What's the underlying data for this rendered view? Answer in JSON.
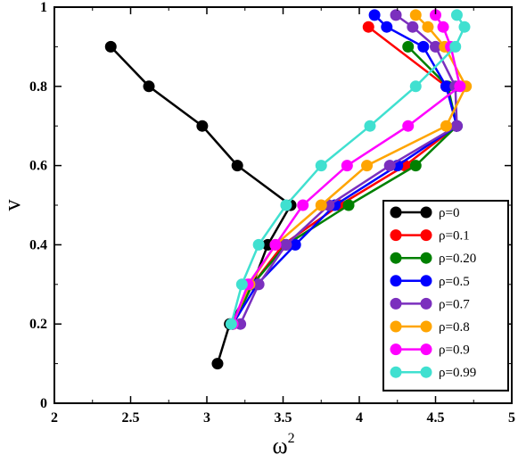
{
  "chart_data": {
    "type": "line",
    "xlabel": "ω",
    "xlabel_superscript": "2",
    "ylabel": "v",
    "xlim": [
      2,
      5
    ],
    "ylim": [
      0,
      1
    ],
    "xticks": [
      "2",
      "2.5",
      "3",
      "3.5",
      "4",
      "4.5",
      "5"
    ],
    "yticks": [
      "0",
      "0.2",
      "0.4",
      "0.6",
      "0.8",
      "1"
    ],
    "legend": {
      "position": "bottom-right",
      "boxed": true
    },
    "series": [
      {
        "name": "ρ=0",
        "color": "#000000",
        "points": [
          [
            2.37,
            0.9
          ],
          [
            2.62,
            0.8
          ],
          [
            2.97,
            0.7
          ],
          [
            3.2,
            0.6
          ],
          [
            3.55,
            0.5
          ],
          [
            3.4,
            0.4
          ],
          [
            3.3,
            0.3
          ],
          [
            3.15,
            0.2
          ],
          [
            3.07,
            0.1
          ]
        ]
      },
      {
        "name": "ρ=0.1",
        "color": "#ff0000",
        "points": [
          [
            4.06,
            0.95
          ],
          [
            4.57,
            0.8
          ],
          [
            4.64,
            0.7
          ],
          [
            4.3,
            0.6
          ],
          [
            3.87,
            0.5
          ],
          [
            3.5,
            0.4
          ],
          [
            3.3,
            0.3
          ],
          [
            3.17,
            0.2
          ]
        ]
      },
      {
        "name": "ρ=0.20",
        "color": "#008000",
        "points": [
          [
            4.32,
            0.9
          ],
          [
            4.58,
            0.8
          ],
          [
            4.64,
            0.7
          ],
          [
            4.37,
            0.6
          ],
          [
            3.93,
            0.5
          ],
          [
            3.52,
            0.4
          ],
          [
            3.3,
            0.3
          ],
          [
            3.17,
            0.2
          ]
        ]
      },
      {
        "name": "ρ=0.5",
        "color": "#0000ff",
        "points": [
          [
            4.1,
            0.98
          ],
          [
            4.18,
            0.95
          ],
          [
            4.42,
            0.9
          ],
          [
            4.57,
            0.8
          ],
          [
            4.64,
            0.7
          ],
          [
            4.25,
            0.6
          ],
          [
            3.84,
            0.5
          ],
          [
            3.58,
            0.4
          ],
          [
            3.33,
            0.3
          ],
          [
            3.17,
            0.2
          ]
        ]
      },
      {
        "name": "ρ=0.7",
        "color": "#7b2fbe",
        "points": [
          [
            4.24,
            0.98
          ],
          [
            4.35,
            0.95
          ],
          [
            4.5,
            0.9
          ],
          [
            4.63,
            0.8
          ],
          [
            4.64,
            0.7
          ],
          [
            4.2,
            0.6
          ],
          [
            3.8,
            0.5
          ],
          [
            3.52,
            0.4
          ],
          [
            3.34,
            0.3
          ],
          [
            3.22,
            0.2
          ]
        ]
      },
      {
        "name": "ρ=0.8",
        "color": "#ffa500",
        "points": [
          [
            4.37,
            0.98
          ],
          [
            4.45,
            0.95
          ],
          [
            4.56,
            0.9
          ],
          [
            4.7,
            0.8
          ],
          [
            4.57,
            0.7
          ],
          [
            4.05,
            0.6
          ],
          [
            3.75,
            0.5
          ],
          [
            3.45,
            0.4
          ],
          [
            3.28,
            0.3
          ],
          [
            3.17,
            0.2
          ]
        ]
      },
      {
        "name": "ρ=0.9",
        "color": "#ff00ff",
        "points": [
          [
            4.5,
            0.98
          ],
          [
            4.55,
            0.95
          ],
          [
            4.6,
            0.9
          ],
          [
            4.66,
            0.8
          ],
          [
            4.32,
            0.7
          ],
          [
            3.92,
            0.6
          ],
          [
            3.63,
            0.5
          ],
          [
            3.45,
            0.4
          ],
          [
            3.27,
            0.3
          ],
          [
            3.17,
            0.2
          ]
        ]
      },
      {
        "name": "ρ=0.99",
        "color": "#40e0d0",
        "points": [
          [
            4.64,
            0.98
          ],
          [
            4.69,
            0.95
          ],
          [
            4.63,
            0.9
          ],
          [
            4.37,
            0.8
          ],
          [
            4.07,
            0.7
          ],
          [
            3.75,
            0.6
          ],
          [
            3.52,
            0.5
          ],
          [
            3.34,
            0.4
          ],
          [
            3.23,
            0.3
          ],
          [
            3.16,
            0.2
          ]
        ]
      }
    ]
  }
}
